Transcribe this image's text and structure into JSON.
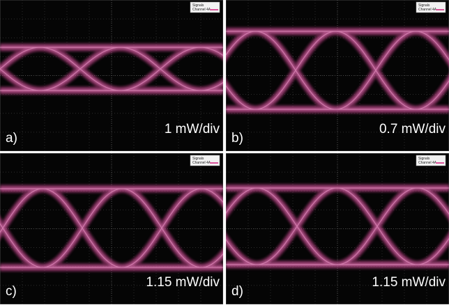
{
  "panels": [
    {
      "label": "a)",
      "scale": "1 mW/div",
      "legend": {
        "title": "Signals",
        "channel": "Channel 4A"
      }
    },
    {
      "label": "b)",
      "scale": "0.7 mW/div",
      "legend": {
        "title": "Signals",
        "channel": "Channel 4A"
      }
    },
    {
      "label": "c)",
      "scale": "1.15 mW/div",
      "legend": {
        "title": "Signals",
        "channel": "Channel 4A"
      }
    },
    {
      "label": "d)",
      "scale": "1.15 mW/div",
      "legend": {
        "title": "Signals",
        "channel": "Channel 4A"
      }
    }
  ]
}
